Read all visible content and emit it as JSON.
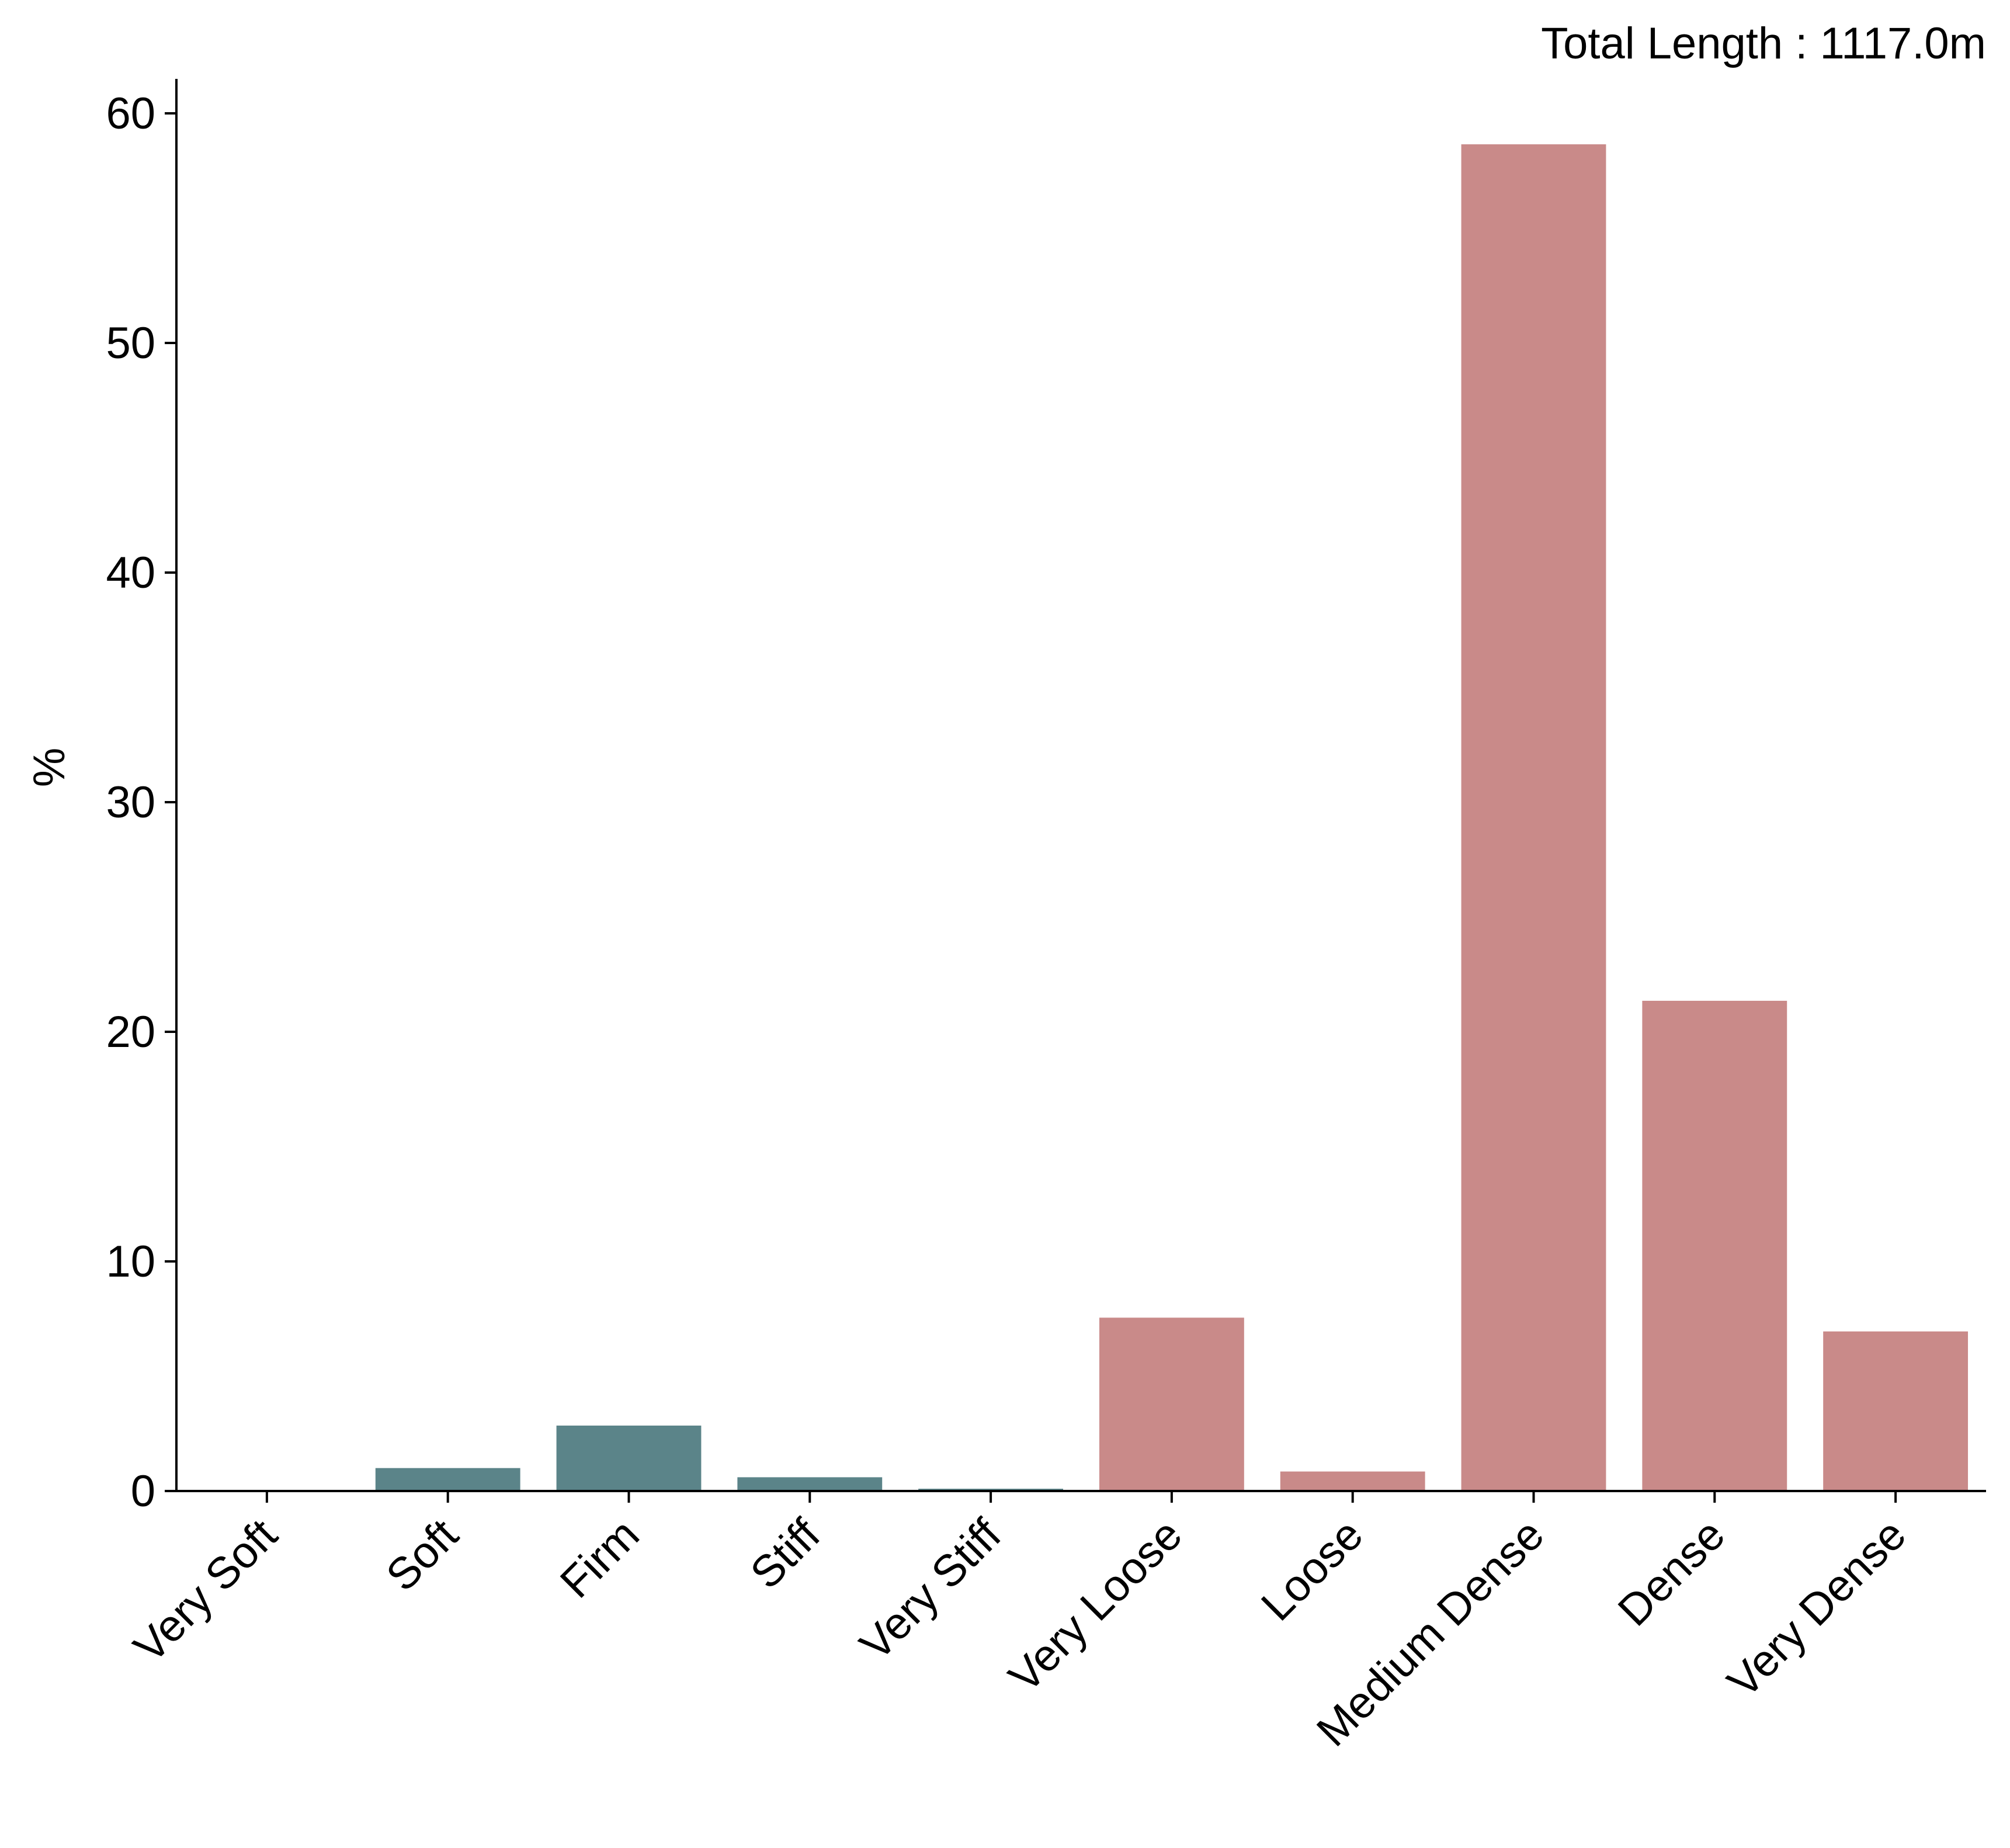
{
  "chart_data": {
    "type": "bar",
    "annotation": "Total Length : 1117.0m",
    "xlabel": "",
    "ylabel": "%",
    "ylim": [
      0,
      61.5
    ],
    "yticks": [
      0,
      10,
      20,
      30,
      40,
      50,
      60
    ],
    "categories": [
      "Very Soft",
      "Soft",
      "Firm",
      "Stiff",
      "Very Stiff",
      "Very Loose",
      "Loose",
      "Medium Dense",
      "Dense",
      "Very Dense"
    ],
    "values": [
      0.0,
      1.0,
      2.85,
      0.6,
      0.1,
      7.55,
      0.85,
      58.65,
      21.35,
      6.95
    ],
    "bar_colors": [
      "#5b8489",
      "#5b8489",
      "#5b8489",
      "#5b8489",
      "#5b8489",
      "#c98a89",
      "#c98a89",
      "#c98a89",
      "#c98a89",
      "#c98a89"
    ],
    "grid": false,
    "legend": "none"
  }
}
